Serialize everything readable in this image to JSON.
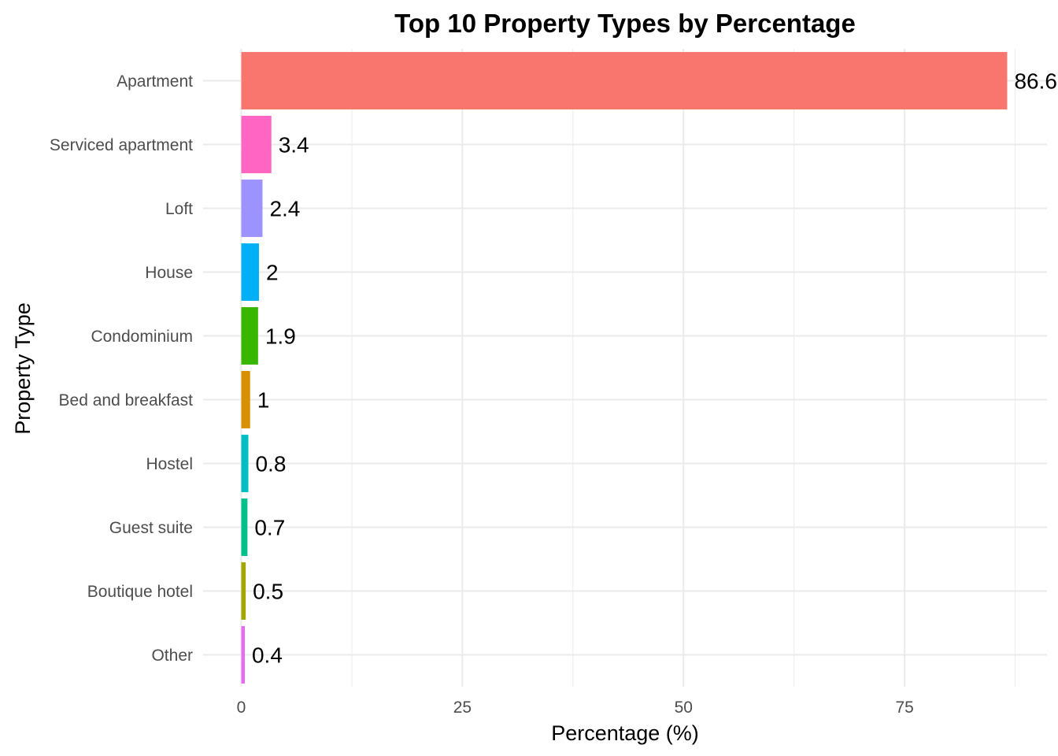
{
  "chart_data": {
    "type": "bar",
    "orientation": "horizontal",
    "title": "Top 10 Property Types by Percentage",
    "xlabel": "Percentage (%)",
    "ylabel": "Property Type",
    "categories": [
      "Apartment",
      "Serviced apartment",
      "Loft",
      "House",
      "Condominium",
      "Bed and breakfast",
      "Hostel",
      "Guest suite",
      "Boutique hotel",
      "Other"
    ],
    "values": [
      86.6,
      3.4,
      2.4,
      2,
      1.9,
      1,
      0.8,
      0.7,
      0.5,
      0.4
    ],
    "value_labels": [
      "86.6",
      "3.4",
      "2.4",
      "2",
      "1.9",
      "1",
      "0.8",
      "0.7",
      "0.5",
      "0.4"
    ],
    "colors": [
      "#F8766D",
      "#FF65C3",
      "#9D93FF",
      "#00B0F6",
      "#39B600",
      "#D89000",
      "#00BFC4",
      "#00C08B",
      "#A3A500",
      "#E76BF3"
    ],
    "xticks": [
      0,
      25,
      50,
      75
    ],
    "xtick_labels": [
      "0",
      "25",
      "50",
      "75"
    ],
    "xlim": [
      0,
      91
    ],
    "grid": true,
    "legend": "none"
  }
}
